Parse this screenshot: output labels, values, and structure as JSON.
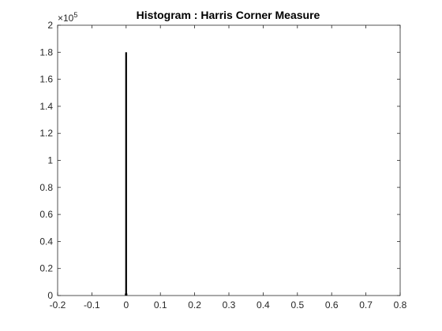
{
  "chart_data": {
    "type": "bar",
    "title": "Histogram : Harris Corner Measure",
    "xlabel": "",
    "ylabel": "",
    "xlim": [
      -0.2,
      0.8
    ],
    "ylim": [
      0,
      200000
    ],
    "x_ticks": [
      "-0.2",
      "-0.1",
      "0",
      "0.1",
      "0.2",
      "0.3",
      "0.4",
      "0.5",
      "0.6",
      "0.7",
      "0.8"
    ],
    "x_tick_values": [
      -0.2,
      -0.1,
      0,
      0.1,
      0.2,
      0.3,
      0.4,
      0.5,
      0.6,
      0.7,
      0.8
    ],
    "y_ticks": [
      "0",
      "0.2",
      "0.4",
      "0.6",
      "0.8",
      "1",
      "1.2",
      "1.4",
      "1.6",
      "1.8",
      "2"
    ],
    "y_tick_values": [
      0,
      20000,
      40000,
      60000,
      80000,
      100000,
      120000,
      140000,
      160000,
      180000,
      200000
    ],
    "y_exponent": {
      "base": "×10",
      "power": "5"
    },
    "grid": false,
    "bar_color": "#000000",
    "bars": [
      {
        "x": 0.0,
        "value": 180000
      },
      {
        "x": -0.001,
        "value": 1500
      },
      {
        "x": 0.001,
        "value": 1500
      }
    ]
  }
}
